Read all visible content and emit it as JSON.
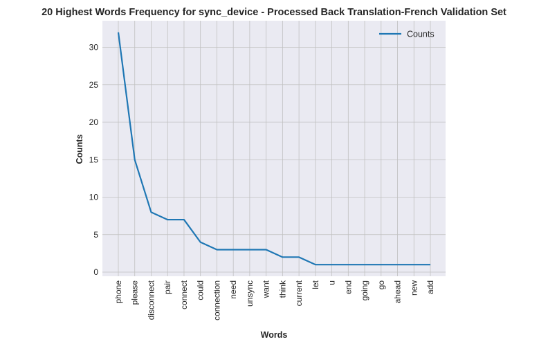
{
  "chart_data": {
    "type": "line",
    "title": "20 Highest Words Frequency for sync_device - Processed Back Translation-French Validation Set",
    "xlabel": "Words",
    "ylabel": "Counts",
    "categories": [
      "phone",
      "please",
      "disconnect",
      "pair",
      "connect",
      "could",
      "connection",
      "need",
      "unsync",
      "want",
      "think",
      "current",
      "let",
      "u",
      "end",
      "going",
      "go",
      "ahead",
      "new",
      "add"
    ],
    "series": [
      {
        "name": "Counts",
        "values": [
          32,
          15,
          8,
          7,
          7,
          4,
          3,
          3,
          3,
          3,
          2,
          2,
          1,
          1,
          1,
          1,
          1,
          1,
          1,
          1
        ]
      }
    ],
    "ylim": [
      -0.55,
      33.55
    ],
    "yticks": [
      0,
      5,
      10,
      15,
      20,
      25,
      30
    ],
    "grid": true,
    "legend": "top-right",
    "colors": {
      "line": "#1f77b4",
      "background": "#eaeaf2",
      "grid": "#c0c0c0"
    }
  }
}
